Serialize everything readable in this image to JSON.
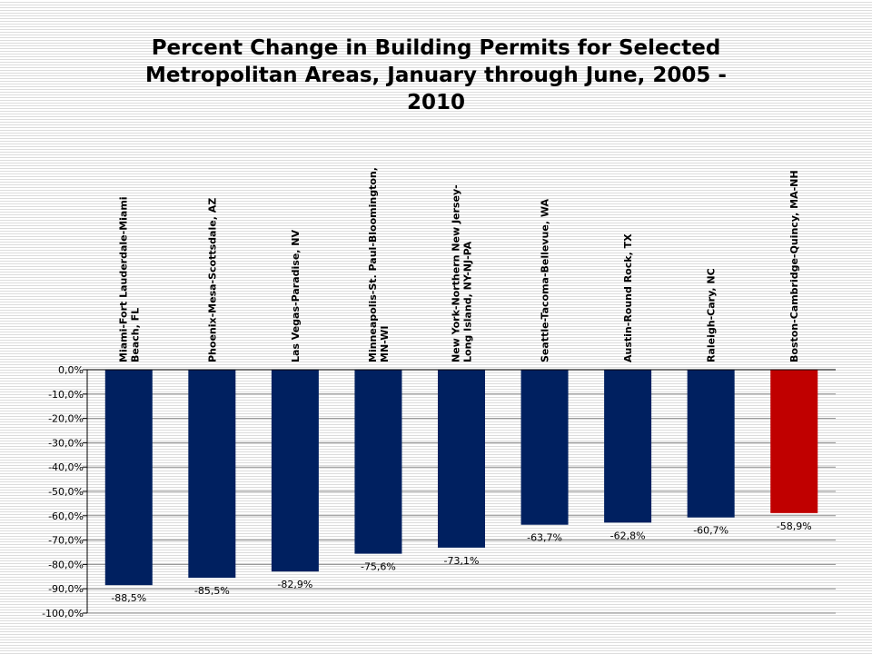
{
  "chart_data": {
    "type": "bar",
    "title": "Percent Change in Building Permits for Selected Metropolitan Areas, January through June, 2005 - 2010",
    "categories": [
      [
        "Miami-Fort Lauderdale-Miami",
        "Beach, FL"
      ],
      [
        "Phoenix-Mesa-Scottsdale, AZ"
      ],
      [
        "Las Vegas-Paradise, NV"
      ],
      [
        "Minneapolis-St. Paul-Bloomington,",
        "MN-WI"
      ],
      [
        "New York-Northern New Jersey-",
        "Long Island, NY-NJ-PA"
      ],
      [
        "Seattle-Tacoma-Bellevue, WA"
      ],
      [
        "Austin-Round Rock, TX"
      ],
      [
        "Raleigh-Cary, NC"
      ],
      [
        "Boston-Cambridge-Quincy, MA-NH"
      ]
    ],
    "values": [
      -88.5,
      -85.5,
      -82.9,
      -75.6,
      -73.1,
      -63.7,
      -62.8,
      -60.7,
      -58.9
    ],
    "data_labels": [
      "-88,5%",
      "-85,5%",
      "-82,9%",
      "-75,6%",
      "-73,1%",
      "-63,7%",
      "-62,8%",
      "-60,7%",
      "-58,9%"
    ],
    "ylim": [
      -100,
      0
    ],
    "y_ticks": [
      0,
      -10,
      -20,
      -30,
      -40,
      -50,
      -60,
      -70,
      -80,
      -90,
      -100
    ],
    "y_tick_labels": [
      "0,0%",
      "-10,0%",
      "-20,0%",
      "-30,0%",
      "-40,0%",
      "-50,0%",
      "-60,0%",
      "-70,0%",
      "-80,0%",
      "-90,0%",
      "-100,0%"
    ],
    "grid": true,
    "xlabel": "",
    "ylabel": "",
    "colors": {
      "default_bar": "#002060",
      "highlight_bar": "#c00000",
      "grid": "#8c8c8c"
    },
    "highlight_index": 8
  }
}
